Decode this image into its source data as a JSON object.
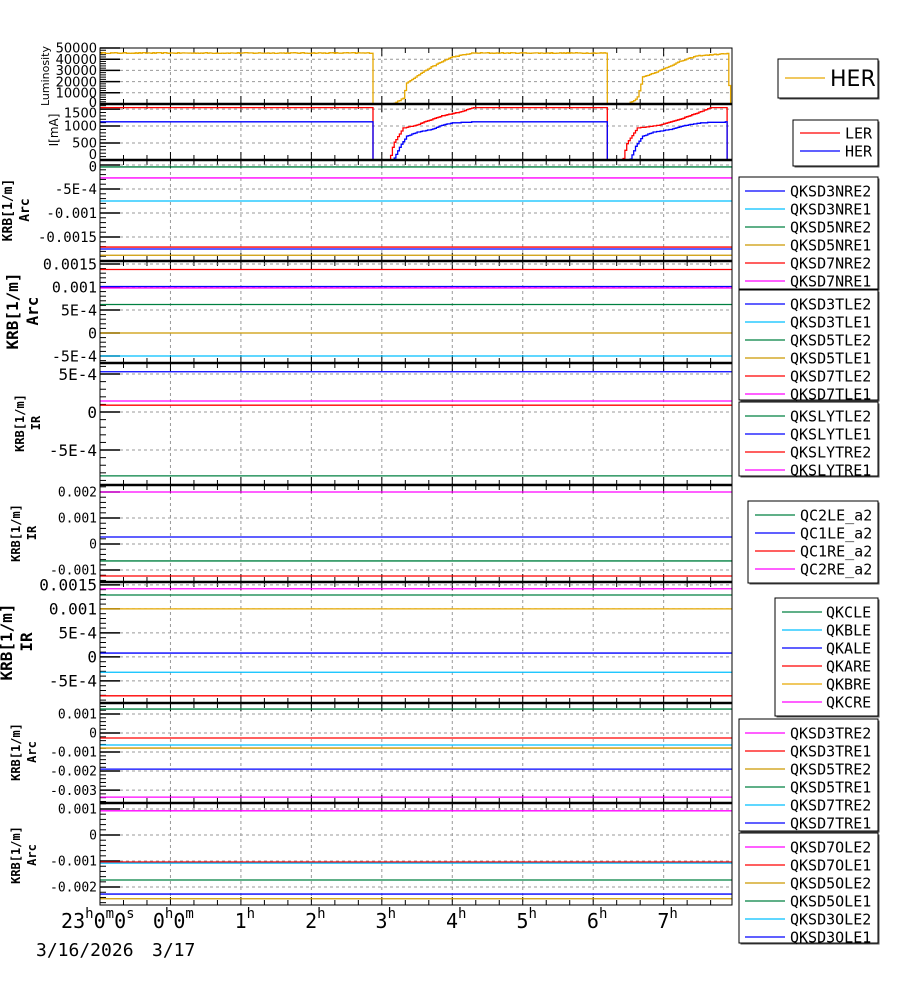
{
  "chart_data": {
    "type": "line",
    "title": "",
    "x_unit": "hours since 3/17 00:00",
    "xlim": [
      -1,
      7.97
    ],
    "x_ticks": [
      {
        "h": -1,
        "parts": [
          [
            "23",
            "h"
          ],
          [
            "0",
            "m"
          ],
          [
            "0",
            "s"
          ]
        ]
      },
      {
        "h": 0,
        "parts": [
          [
            "0",
            "h"
          ],
          [
            "0",
            "m"
          ]
        ]
      },
      {
        "h": 1,
        "parts": [
          [
            "1",
            "h"
          ]
        ]
      },
      {
        "h": 2,
        "parts": [
          [
            "2",
            "h"
          ]
        ]
      },
      {
        "h": 3,
        "parts": [
          [
            "3",
            "h"
          ]
        ]
      },
      {
        "h": 4,
        "parts": [
          [
            "4",
            "h"
          ]
        ]
      },
      {
        "h": 5,
        "parts": [
          [
            "5",
            "h"
          ]
        ]
      },
      {
        "h": 6,
        "parts": [
          [
            "6",
            "h"
          ]
        ]
      },
      {
        "h": 7,
        "parts": [
          [
            "7",
            "h"
          ]
        ]
      }
    ],
    "date_labels": [
      "3/16/2026",
      "3/17"
    ],
    "grid": true,
    "panels": [
      {
        "ylabel": [
          "Luminosity"
        ],
        "ylim": [
          0,
          50000
        ],
        "ticks": [
          {
            "v": 50000,
            "label": "50000"
          },
          {
            "v": 40000,
            "label": "40000"
          },
          {
            "v": 30000,
            "label": "30000"
          },
          {
            "v": 20000,
            "label": "20000"
          },
          {
            "v": 10000,
            "label": "10000"
          },
          {
            "v": 0,
            "label": "0"
          }
        ],
        "series": [
          {
            "name": "HER",
            "color": "#e6a800",
            "noise": 700,
            "points": [
              [
                -1,
                45500
              ],
              [
                2.87,
                45500
              ],
              [
                2.87,
                0
              ],
              [
                3.15,
                0
              ],
              [
                3.3,
                5000
              ],
              [
                3.35,
                19000
              ],
              [
                3.64,
                31000
              ],
              [
                3.92,
                40000
              ],
              [
                4.0,
                42000
              ],
              [
                4.29,
                45500
              ],
              [
                6.2,
                45500
              ],
              [
                6.2,
                0
              ],
              [
                6.49,
                0
              ],
              [
                6.62,
                5000
              ],
              [
                6.7,
                24000
              ],
              [
                6.95,
                30000
              ],
              [
                7.23,
                38000
              ],
              [
                7.47,
                43000
              ],
              [
                7.9,
                45000
              ],
              [
                7.92,
                33000
              ],
              [
                7.93,
                0
              ],
              [
                7.97,
                0
              ]
            ]
          }
        ]
      },
      {
        "ylabel": [
          "I[mA]"
        ],
        "ylim": [
          0,
          1650
        ],
        "ticks": [
          {
            "v": 1500,
            "label": "1500"
          },
          {
            "v": 1000,
            "label": "1000"
          },
          {
            "v": 500,
            "label": "500"
          },
          {
            "v": 0,
            "label": "0"
          }
        ],
        "series": [
          {
            "name": "LER",
            "color": "#ff0000",
            "noise": 0,
            "points": [
              [
                -1,
                1540
              ],
              [
                2.87,
                1540
              ],
              [
                2.87,
                0
              ],
              [
                3.11,
                0
              ],
              [
                3.16,
                470
              ],
              [
                3.3,
                940
              ],
              [
                3.5,
                1030
              ],
              [
                3.6,
                1120
              ],
              [
                3.85,
                1300
              ],
              [
                4.1,
                1410
              ],
              [
                4.29,
                1540
              ],
              [
                6.2,
                1540
              ],
              [
                6.2,
                0
              ],
              [
                6.42,
                0
              ],
              [
                6.47,
                470
              ],
              [
                6.62,
                940
              ],
              [
                6.7,
                960
              ],
              [
                6.95,
                1030
              ],
              [
                7.23,
                1200
              ],
              [
                7.56,
                1450
              ],
              [
                7.66,
                1540
              ],
              [
                7.9,
                1540
              ],
              [
                7.9,
                0
              ],
              [
                7.97,
                0
              ]
            ]
          },
          {
            "name": "HER",
            "color": "#0000ff",
            "noise": 0,
            "points": [
              [
                -1,
                1120
              ],
              [
                2.87,
                1120
              ],
              [
                2.87,
                0
              ],
              [
                3.16,
                0
              ],
              [
                3.25,
                380
              ],
              [
                3.35,
                700
              ],
              [
                3.5,
                820
              ],
              [
                3.72,
                910
              ],
              [
                3.86,
                1030
              ],
              [
                4.0,
                1090
              ],
              [
                4.29,
                1120
              ],
              [
                6.2,
                1120
              ],
              [
                6.2,
                0
              ],
              [
                6.52,
                0
              ],
              [
                6.6,
                400
              ],
              [
                6.7,
                700
              ],
              [
                6.85,
                820
              ],
              [
                7.09,
                900
              ],
              [
                7.33,
                1030
              ],
              [
                7.56,
                1100
              ],
              [
                7.9,
                1120
              ],
              [
                7.9,
                0
              ],
              [
                7.97,
                0
              ]
            ]
          }
        ]
      },
      {
        "ylabel": [
          "KRB[1/m]",
          "Arc"
        ],
        "ylim": [
          -0.002,
          0.000104
        ],
        "ticks": [
          {
            "v": 0,
            "label": "0"
          },
          {
            "v": -0.0005,
            "label": "-5E-4"
          },
          {
            "v": -0.001,
            "label": "-0.001"
          },
          {
            "v": -0.0015,
            "label": "-0.0015"
          }
        ],
        "series": [
          {
            "name": "QKSD3NRE2",
            "color": "#0000ff",
            "value": -0.00175
          },
          {
            "name": "QKSD3NRE1",
            "color": "#00bfff",
            "value": -0.00075
          },
          {
            "name": "QKSD5NRE2",
            "color": "#008040",
            "value": -4e-05
          },
          {
            "name": "QKSD5NRE1",
            "color": "#cc9900",
            "value": -0.00188
          },
          {
            "name": "QKSD7NRE2",
            "color": "#ff0000",
            "value": -0.00171
          },
          {
            "name": "QKSD7NRE1",
            "color": "#ff00ff",
            "value": -0.00027
          }
        ]
      },
      {
        "ylabel": [
          "KRB[1/m]",
          "Arc"
        ],
        "ylim": [
          -0.000652,
          0.001565
        ],
        "ticks": [
          {
            "v": 0.0015,
            "label": "0.0015"
          },
          {
            "v": 0.001,
            "label": "0.001"
          },
          {
            "v": 0.0005,
            "label": "5E-4"
          },
          {
            "v": 0,
            "label": "0"
          },
          {
            "v": -0.0005,
            "label": "-5E-4"
          }
        ],
        "series": [
          {
            "name": "QKSD3TLE2",
            "color": "#0000ff",
            "value": 0.00101
          },
          {
            "name": "QKSD3TLE1",
            "color": "#00bfff",
            "value": -0.0005
          },
          {
            "name": "QKSD5TLE2",
            "color": "#008040",
            "value": 0.00062
          },
          {
            "name": "QKSD5TLE1",
            "color": "#cc9900",
            "value": 0.0
          },
          {
            "name": "QKSD7TLE2",
            "color": "#ff0000",
            "value": 0.00138
          },
          {
            "name": "QKSD7TLE1",
            "color": "#ff00ff",
            "value": 0.00098
          }
        ]
      },
      {
        "ylabel": [
          "KRB[1/m]",
          "IR"
        ],
        "ylim": [
          -0.00096,
          0.000645
        ],
        "ticks": [
          {
            "v": 0.0005,
            "label": "5E-4"
          },
          {
            "v": 0,
            "label": "0"
          },
          {
            "v": -0.0005,
            "label": "-5E-4"
          }
        ],
        "series": [
          {
            "name": "QKSLYTLE2",
            "color": "#008040",
            "value": -0.00084
          },
          {
            "name": "QKSLYTLE1",
            "color": "#0000ff",
            "value": 0.00053
          },
          {
            "name": "QKSLYTRE2",
            "color": "#ff0000",
            "value": 9e-05
          },
          {
            "name": "QKSLYTRE1",
            "color": "#ff00ff",
            "value": 0.000145
          }
        ]
      },
      {
        "ylabel": [
          "KRB[1/m]",
          "IR"
        ],
        "ylim": [
          -0.00146,
          0.00227
        ],
        "ticks": [
          {
            "v": 0.002,
            "label": "0.002"
          },
          {
            "v": 0.001,
            "label": "0.001"
          },
          {
            "v": 0,
            "label": "0"
          },
          {
            "v": -0.001,
            "label": "-0.001"
          }
        ],
        "series": [
          {
            "name": "QC2LE_a2",
            "color": "#008040",
            "value": -0.00065
          },
          {
            "name": "QC1LE_a2",
            "color": "#0000ff",
            "value": 0.00027
          },
          {
            "name": "QC1RE_a2",
            "color": "#ff0000",
            "value": -0.00123
          },
          {
            "name": "QC2RE_a2",
            "color": "#ff00ff",
            "value": 0.002
          }
        ]
      },
      {
        "ylabel": [
          "KRB[1/m]",
          "IR"
        ],
        "ylim": [
          -0.00096,
          0.00156
        ],
        "ticks": [
          {
            "v": 0.0015,
            "label": "0.0015"
          },
          {
            "v": 0.001,
            "label": "0.001"
          },
          {
            "v": 0.0005,
            "label": "5E-4"
          },
          {
            "v": 0,
            "label": "0"
          },
          {
            "v": -0.0005,
            "label": "-5E-4"
          }
        ],
        "series": [
          {
            "name": "QKCLE",
            "color": "#008040",
            "value": 0.00129
          },
          {
            "name": "QKBLE",
            "color": "#00bfff",
            "value": -0.00032
          },
          {
            "name": "QKALE",
            "color": "#0000ff",
            "value": 8e-05
          },
          {
            "name": "QKARE",
            "color": "#ff0000",
            "value": -0.00081
          },
          {
            "name": "QKBRE",
            "color": "#e6a800",
            "value": 0.001
          },
          {
            "name": "QKCRE",
            "color": "#ff00ff",
            "value": 0.00142
          }
        ]
      },
      {
        "ylabel": [
          "KRB[1/m]",
          "Arc"
        ],
        "ylim": [
          -0.00368,
          0.00158
        ],
        "ticks": [
          {
            "v": 0.001,
            "label": "0.001"
          },
          {
            "v": 0,
            "label": "0"
          },
          {
            "v": -0.001,
            "label": "-0.001"
          },
          {
            "v": -0.002,
            "label": "-0.002"
          },
          {
            "v": -0.003,
            "label": "-0.003"
          }
        ],
        "series": [
          {
            "name": "QKSD3TRE2",
            "color": "#ff00ff",
            "value": -0.00337
          },
          {
            "name": "QKSD3TRE1",
            "color": "#ff0000",
            "value": -0.00026
          },
          {
            "name": "QKSD5TRE2",
            "color": "#cc9900",
            "value": -0.00079
          },
          {
            "name": "QKSD5TRE1",
            "color": "#008040",
            "value": 0.00126
          },
          {
            "name": "QKSD7TRE2",
            "color": "#00bfff",
            "value": -0.00063
          },
          {
            "name": "QKSD7TRE1",
            "color": "#0000ff",
            "value": -0.0019
          }
        ]
      },
      {
        "ylabel": [
          "KRB[1/m]",
          "Arc"
        ],
        "ylim": [
          -0.00269,
          0.00123
        ],
        "ticks": [
          {
            "v": 0.001,
            "label": "0.001"
          },
          {
            "v": 0,
            "label": "0"
          },
          {
            "v": -0.001,
            "label": "-0.001"
          },
          {
            "v": -0.002,
            "label": "-0.002"
          }
        ],
        "series": [
          {
            "name": "QKSD7OLE2",
            "color": "#ff00ff",
            "value": 0.00093
          },
          {
            "name": "QKSD7OLE1",
            "color": "#ff0000",
            "value": -0.00104
          },
          {
            "name": "QKSD5OLE2",
            "color": "#cc9900",
            "value": -0.00245
          },
          {
            "name": "QKSD5OLE1",
            "color": "#008040",
            "value": -0.00173
          },
          {
            "name": "QKSD3OLE2",
            "color": "#00bfff",
            "value": -0.00108
          },
          {
            "name": "QKSD3OLE1",
            "color": "#0000ff",
            "value": -0.00227
          }
        ]
      }
    ]
  }
}
